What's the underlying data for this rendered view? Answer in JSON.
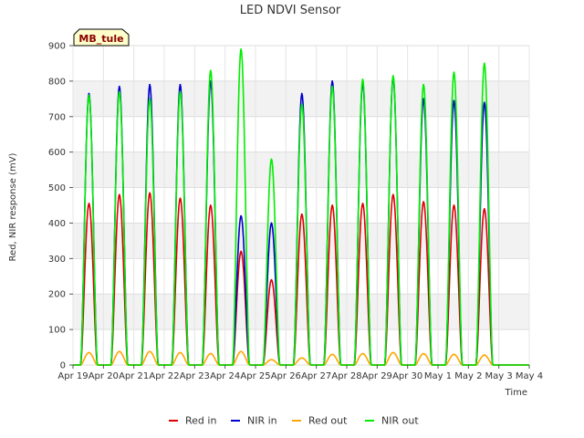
{
  "chart_data": {
    "type": "line",
    "title": "LED NDVI Sensor",
    "xlabel": "Time",
    "ylabel": "Red, NIR response (mV)",
    "ylim": [
      0,
      900
    ],
    "yticks": [
      0,
      100,
      200,
      300,
      400,
      500,
      600,
      700,
      800,
      900
    ],
    "xlim": [
      "2018-04-19",
      "2018-05-04"
    ],
    "xtick_labels": [
      "Apr 19",
      "Apr 20",
      "Apr 21",
      "Apr 22",
      "Apr 23",
      "Apr 24",
      "Apr 25",
      "Apr 26",
      "Apr 27",
      "Apr 28",
      "Apr 29",
      "Apr 30",
      "May 1",
      "May 2",
      "May 3",
      "May 4"
    ],
    "grid": true,
    "legend_position": "bottom",
    "annotation": "MB_tule",
    "series": [
      {
        "name": "Red in",
        "color": "#dd0000",
        "x": [
          "2018-04-19",
          "2018-04-20",
          "2018-04-21",
          "2018-04-22",
          "2018-04-23",
          "2018-04-24",
          "2018-04-25",
          "2018-04-26",
          "2018-04-27",
          "2018-04-28",
          "2018-04-29",
          "2018-04-30",
          "2018-05-01",
          "2018-05-02",
          "2018-05-03"
        ],
        "values": [
          455,
          480,
          485,
          470,
          450,
          320,
          240,
          425,
          450,
          455,
          480,
          460,
          450,
          440,
          0
        ]
      },
      {
        "name": "NIR in",
        "color": "#0000cc",
        "x": [
          "2018-04-19",
          "2018-04-20",
          "2018-04-21",
          "2018-04-22",
          "2018-04-23",
          "2018-04-24",
          "2018-04-25",
          "2018-04-26",
          "2018-04-27",
          "2018-04-28",
          "2018-04-29",
          "2018-04-30",
          "2018-05-01",
          "2018-05-02",
          "2018-05-03"
        ],
        "values": [
          765,
          785,
          790,
          790,
          800,
          420,
          400,
          765,
          800,
          795,
          810,
          750,
          745,
          740,
          0
        ]
      },
      {
        "name": "Red out",
        "color": "#ffa500",
        "x": [
          "2018-04-19",
          "2018-04-20",
          "2018-04-21",
          "2018-04-22",
          "2018-04-23",
          "2018-04-24",
          "2018-04-25",
          "2018-04-26",
          "2018-04-27",
          "2018-04-28",
          "2018-04-29",
          "2018-04-30",
          "2018-05-01",
          "2018-05-02",
          "2018-05-03"
        ],
        "values": [
          35,
          38,
          38,
          35,
          32,
          38,
          15,
          20,
          30,
          32,
          35,
          32,
          30,
          28,
          0
        ]
      },
      {
        "name": "NIR out",
        "color": "#00ee00",
        "x": [
          "2018-04-19",
          "2018-04-20",
          "2018-04-21",
          "2018-04-22",
          "2018-04-23",
          "2018-04-24",
          "2018-04-25",
          "2018-04-26",
          "2018-04-27",
          "2018-04-28",
          "2018-04-29",
          "2018-04-30",
          "2018-05-01",
          "2018-05-02",
          "2018-05-03"
        ],
        "values": [
          760,
          770,
          750,
          770,
          830,
          890,
          580,
          735,
          785,
          805,
          815,
          790,
          825,
          850,
          0
        ]
      }
    ]
  }
}
